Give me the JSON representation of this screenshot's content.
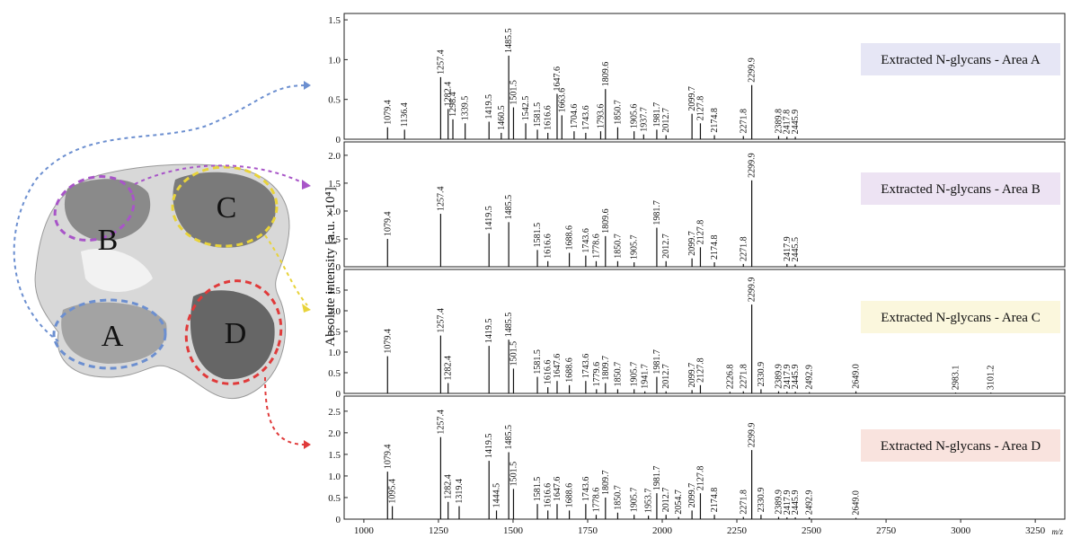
{
  "image": {
    "regions": [
      "A",
      "B",
      "C",
      "D"
    ]
  },
  "chart_data": [
    {
      "type": "stem",
      "title": "Extracted N-glycans - Area A",
      "box_color": "#e6e6f5",
      "line_color": "#111111",
      "ylabel": "Absolute intensity [a.u. ×10⁴]",
      "xlim": [
        934,
        3349
      ],
      "ylim": [
        0,
        1.58
      ],
      "yticks": [
        0,
        0.5,
        {
          "value": 1,
          "label": "1.0"
        },
        1.5
      ],
      "x": [
        1079.4,
        1136.4,
        1257.4,
        1282.4,
        1298.4,
        1339.5,
        1419.5,
        1460.5,
        1485.5,
        1501.5,
        1542.5,
        1581.5,
        1616.6,
        1647.6,
        1663.6,
        1704.6,
        1743.6,
        1793.6,
        1809.6,
        1850.7,
        1905.6,
        1937.7,
        1981.7,
        2012.7,
        2099.7,
        2127.8,
        2174.8,
        2271.8,
        2299.9,
        2389.8,
        2417.8,
        2445.9
      ],
      "x_labels": [
        "1079.4",
        "1136.4",
        "1257.4",
        "1282.4",
        "1298.4",
        "1339.5",
        "1419.5",
        "1460.5",
        "1485.5",
        "1501.5",
        "1542.5",
        "1581.5",
        "1616.6",
        "1647.6",
        "1663.6",
        "1704.6",
        "1743.6",
        "1793.6",
        "1809.6",
        "1850.7",
        "1905.6",
        "1937.7",
        "1981.7",
        "2012.7",
        "2099.7",
        "2127.8",
        "2174.8",
        "2271.8",
        "2299.9",
        "2389.8",
        "2417.8",
        "2445.9"
      ],
      "values": [
        0.15,
        0.12,
        0.78,
        0.38,
        0.25,
        0.2,
        0.22,
        0.08,
        1.05,
        0.4,
        0.2,
        0.12,
        0.08,
        0.57,
        0.3,
        0.1,
        0.08,
        0.1,
        0.63,
        0.15,
        0.1,
        0.06,
        0.12,
        0.05,
        0.32,
        0.2,
        0.05,
        0.04,
        0.68,
        0.04,
        0.03,
        0.03
      ]
    },
    {
      "type": "stem",
      "title": "Extracted N-glycans - Area B",
      "box_color": "#ede3f3",
      "line_color": "#111111",
      "xlim": [
        934,
        3349
      ],
      "ylim": [
        0,
        2.24
      ],
      "yticks": [
        0,
        0.5,
        {
          "value": 1,
          "label": "1.0"
        },
        1.5,
        {
          "value": 2,
          "label": "2.0"
        }
      ],
      "x": [
        1079.4,
        1257.4,
        1419.5,
        1485.5,
        1581.5,
        1616.6,
        1688.6,
        1743.6,
        1778.6,
        1809.6,
        1850.7,
        1905.7,
        1981.7,
        2012.7,
        2099.7,
        2127.8,
        2174.8,
        2271.8,
        2299.9,
        2417.9,
        2445.5
      ],
      "x_labels": [
        "1079.4",
        "1257.4",
        "1419.5",
        "1485.5",
        "1581.5",
        "1616.6",
        "1688.6",
        "1743.6",
        "1778.6",
        "1809.6",
        "1850.7",
        "1905.7",
        "1981.7",
        "2012.7",
        "2099.7",
        "2127.8",
        "2174.8",
        "2271.8",
        "2299.9",
        "2417.9",
        "2445.5"
      ],
      "values": [
        0.5,
        0.95,
        0.6,
        0.8,
        0.3,
        0.1,
        0.25,
        0.2,
        0.1,
        0.55,
        0.1,
        0.08,
        0.7,
        0.1,
        0.15,
        0.35,
        0.08,
        0.05,
        1.55,
        0.05,
        0.04
      ]
    },
    {
      "type": "stem",
      "title": "Extracted N-glycans - Area C",
      "box_color": "#fbf7dd",
      "line_color": "#111111",
      "xlim": [
        934,
        3349
      ],
      "ylim": [
        0,
        3.0
      ],
      "yticks": [
        0,
        0.5,
        {
          "value": 1,
          "label": "1.0"
        },
        1.5,
        {
          "value": 2,
          "label": "2.0"
        },
        2.5
      ],
      "x": [
        1079.4,
        1257.4,
        1282.4,
        1419.5,
        1485.5,
        1501.5,
        1581.5,
        1616.6,
        1647.6,
        1688.6,
        1743.6,
        1779.6,
        1809.7,
        1850.7,
        1905.7,
        1941.7,
        1981.7,
        2012.7,
        2099.7,
        2127.8,
        2226.8,
        2271.8,
        2299.9,
        2330.9,
        2389.9,
        2417.9,
        2445.9,
        2492.9,
        2649.0,
        2983.1,
        3101.2
      ],
      "x_labels": [
        "1079.4",
        "1257.4",
        "1282.4",
        "1419.5",
        "1485.5",
        "1501.5",
        "1581.5",
        "1616.6",
        "1647.6",
        "1688.6",
        "1743.6",
        "1779.6",
        "1809.7",
        "1850.7",
        "1905.7",
        "1941.7",
        "1981.7",
        "2012.7",
        "2099.7",
        "2127.8",
        "2226.8",
        "2271.8",
        "2299.9",
        "2330.9",
        "2389.9",
        "2417.9",
        "2445.9",
        "2492.9",
        "2649.0",
        "2983.1",
        "3101.2"
      ],
      "values": [
        0.9,
        1.4,
        0.25,
        1.15,
        1.3,
        0.6,
        0.4,
        0.15,
        0.3,
        0.2,
        0.3,
        0.1,
        0.25,
        0.1,
        0.1,
        0.05,
        0.4,
        0.05,
        0.08,
        0.2,
        0.04,
        0.05,
        2.15,
        0.1,
        0.05,
        0.04,
        0.04,
        0.03,
        0.05,
        0.02,
        0.02
      ]
    },
    {
      "type": "stem",
      "title": "Extracted N-glycans - Area D",
      "box_color": "#f9e3de",
      "line_color": "#111111",
      "xlim": [
        934,
        3349
      ],
      "ylim": [
        0,
        2.85
      ],
      "yticks": [
        0,
        0.5,
        {
          "value": 1,
          "label": "1.0"
        },
        1.5,
        {
          "value": 2,
          "label": "2.0"
        },
        2.5
      ],
      "xticks": [
        1000,
        1250,
        1500,
        1750,
        2000,
        2250,
        2500,
        2750,
        3000,
        3250
      ],
      "xlabel": "m/z",
      "x": [
        1079.4,
        1095.4,
        1257.4,
        1282.4,
        1319.4,
        1419.5,
        1444.5,
        1485.5,
        1501.5,
        1581.5,
        1616.6,
        1647.6,
        1688.6,
        1743.6,
        1778.6,
        1809.7,
        1850.7,
        1905.7,
        1953.7,
        1981.7,
        2012.7,
        2054.7,
        2099.7,
        2127.8,
        2174.8,
        2271.8,
        2299.9,
        2330.9,
        2389.9,
        2417.9,
        2445.9,
        2492.9,
        2649.0
      ],
      "x_labels": [
        "1079.4",
        "1095.4",
        "1257.4",
        "1282.4",
        "1319.4",
        "1419.5",
        "1444.5",
        "1485.5",
        "1501.5",
        "1581.5",
        "1616.6",
        "1647.6",
        "1688.6",
        "1743.6",
        "1778.6",
        "1809.7",
        "1850.7",
        "1905.7",
        "1953.7",
        "1981.7",
        "2012.7",
        "2054.7",
        "2099.7",
        "2127.8",
        "2174.8",
        "2271.8",
        "2299.9",
        "2330.9",
        "2389.9",
        "2417.9",
        "2445.9",
        "2492.9",
        "2649.0"
      ],
      "values": [
        1.1,
        0.3,
        1.9,
        0.4,
        0.3,
        1.35,
        0.2,
        1.55,
        0.7,
        0.35,
        0.2,
        0.35,
        0.2,
        0.35,
        0.1,
        0.5,
        0.15,
        0.1,
        0.08,
        0.6,
        0.1,
        0.05,
        0.2,
        0.6,
        0.1,
        0.05,
        1.6,
        0.1,
        0.05,
        0.04,
        0.04,
        0.04,
        0.03
      ]
    }
  ]
}
